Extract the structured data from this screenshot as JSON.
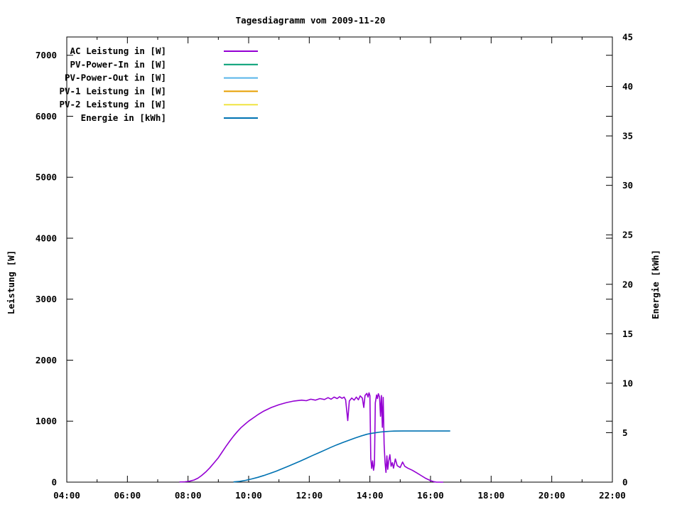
{
  "chart_data": {
    "type": "line",
    "title": "Tagesdiagramm vom 2009-11-20",
    "background": "#ffffff",
    "axis_color": "#000000",
    "grid": false,
    "legend_position": "top-left-inside",
    "x_axis": {
      "min_hour": 4,
      "max_hour": 22,
      "tick_hours": [
        4,
        6,
        8,
        10,
        12,
        14,
        16,
        18,
        20,
        22
      ],
      "tick_labels": [
        "04:00",
        "06:00",
        "08:00",
        "10:00",
        "12:00",
        "14:00",
        "16:00",
        "18:00",
        "20:00",
        "22:00"
      ],
      "minor_tick_hours": [
        5,
        7,
        9,
        11,
        13,
        15,
        17,
        19,
        21
      ]
    },
    "y_left": {
      "label": "Leistung [W]",
      "min": 0,
      "max": 7300,
      "tick_values": [
        0,
        1000,
        2000,
        3000,
        4000,
        5000,
        6000,
        7000
      ],
      "tick_labels": [
        "0",
        "1000",
        "2000",
        "3000",
        "4000",
        "5000",
        "6000",
        "7000"
      ]
    },
    "y_right": {
      "label": "Energie [kWh]",
      "min": 0,
      "max": 45,
      "tick_values": [
        0,
        5,
        10,
        15,
        20,
        25,
        30,
        35,
        40,
        45
      ],
      "tick_labels": [
        "0",
        "5",
        "10",
        "15",
        "20",
        "25",
        "30",
        "35",
        "40",
        "45"
      ]
    },
    "legend": [
      {
        "label": "AC Leistung in [W]",
        "color": "#9400d3"
      },
      {
        "label": "PV-Power-In in [W]",
        "color": "#009e73"
      },
      {
        "label": "PV-Power-Out in [W]",
        "color": "#56b4e9"
      },
      {
        "label": "PV-1 Leistung in [W]",
        "color": "#e69f00"
      },
      {
        "label": "PV-2 Leistung in [W]",
        "color": "#f0e442"
      },
      {
        "label": "Energie in [kWh]",
        "color": "#0072b2"
      }
    ],
    "series": [
      {
        "name": "AC Leistung in [W]",
        "axis": "left",
        "color": "#9400d3",
        "points": [
          [
            7.72,
            2
          ],
          [
            7.9,
            6
          ],
          [
            8.05,
            15
          ],
          [
            8.2,
            35
          ],
          [
            8.33,
            65
          ],
          [
            8.45,
            110
          ],
          [
            8.58,
            165
          ],
          [
            8.72,
            235
          ],
          [
            8.85,
            310
          ],
          [
            9.0,
            400
          ],
          [
            9.12,
            490
          ],
          [
            9.25,
            585
          ],
          [
            9.38,
            675
          ],
          [
            9.5,
            755
          ],
          [
            9.63,
            830
          ],
          [
            9.75,
            895
          ],
          [
            9.88,
            950
          ],
          [
            10.0,
            1000
          ],
          [
            10.17,
            1060
          ],
          [
            10.33,
            1115
          ],
          [
            10.5,
            1165
          ],
          [
            10.75,
            1225
          ],
          [
            11.0,
            1270
          ],
          [
            11.25,
            1305
          ],
          [
            11.5,
            1330
          ],
          [
            11.75,
            1345
          ],
          [
            11.9,
            1335
          ],
          [
            12.05,
            1360
          ],
          [
            12.2,
            1345
          ],
          [
            12.35,
            1370
          ],
          [
            12.5,
            1355
          ],
          [
            12.62,
            1385
          ],
          [
            12.72,
            1360
          ],
          [
            12.82,
            1395
          ],
          [
            12.92,
            1370
          ],
          [
            13.0,
            1400
          ],
          [
            13.08,
            1375
          ],
          [
            13.15,
            1395
          ],
          [
            13.2,
            1350
          ],
          [
            13.27,
            1010
          ],
          [
            13.32,
            1330
          ],
          [
            13.4,
            1380
          ],
          [
            13.48,
            1345
          ],
          [
            13.55,
            1395
          ],
          [
            13.62,
            1350
          ],
          [
            13.68,
            1415
          ],
          [
            13.75,
            1380
          ],
          [
            13.8,
            1225
          ],
          [
            13.84,
            1420
          ],
          [
            13.9,
            1455
          ],
          [
            13.94,
            1395
          ],
          [
            13.97,
            1465
          ],
          [
            14.0,
            1420
          ],
          [
            14.03,
            390
          ],
          [
            14.06,
            225
          ],
          [
            14.09,
            350
          ],
          [
            14.12,
            195
          ],
          [
            14.15,
            290
          ],
          [
            14.18,
            1300
          ],
          [
            14.22,
            1430
          ],
          [
            14.25,
            1370
          ],
          [
            14.28,
            1450
          ],
          [
            14.32,
            1395
          ],
          [
            14.35,
            1080
          ],
          [
            14.38,
            1420
          ],
          [
            14.41,
            900
          ],
          [
            14.44,
            1390
          ],
          [
            14.47,
            620
          ],
          [
            14.5,
            320
          ],
          [
            14.53,
            160
          ],
          [
            14.56,
            430
          ],
          [
            14.59,
            210
          ],
          [
            14.62,
            340
          ],
          [
            14.66,
            450
          ],
          [
            14.7,
            260
          ],
          [
            14.74,
            320
          ],
          [
            14.78,
            230
          ],
          [
            14.84,
            380
          ],
          [
            14.9,
            270
          ],
          [
            15.0,
            240
          ],
          [
            15.08,
            330
          ],
          [
            15.15,
            260
          ],
          [
            15.25,
            230
          ],
          [
            15.4,
            195
          ],
          [
            15.55,
            150
          ],
          [
            15.7,
            105
          ],
          [
            15.85,
            60
          ],
          [
            16.0,
            25
          ],
          [
            16.1,
            8
          ],
          [
            16.2,
            0
          ],
          [
            16.42,
            0
          ]
        ]
      },
      {
        "name": "Energie in [kWh]",
        "axis": "right",
        "color": "#0072b2",
        "points": [
          [
            9.5,
            0.02
          ],
          [
            9.7,
            0.08
          ],
          [
            9.9,
            0.18
          ],
          [
            10.1,
            0.32
          ],
          [
            10.3,
            0.48
          ],
          [
            10.5,
            0.67
          ],
          [
            10.7,
            0.88
          ],
          [
            10.9,
            1.1
          ],
          [
            11.1,
            1.35
          ],
          [
            11.3,
            1.6
          ],
          [
            11.5,
            1.86
          ],
          [
            11.7,
            2.12
          ],
          [
            11.9,
            2.4
          ],
          [
            12.1,
            2.68
          ],
          [
            12.3,
            2.95
          ],
          [
            12.5,
            3.22
          ],
          [
            12.7,
            3.5
          ],
          [
            12.9,
            3.76
          ],
          [
            13.1,
            4.0
          ],
          [
            13.3,
            4.22
          ],
          [
            13.5,
            4.45
          ],
          [
            13.7,
            4.66
          ],
          [
            13.9,
            4.84
          ],
          [
            14.05,
            4.93
          ],
          [
            14.2,
            5.0
          ],
          [
            14.35,
            5.07
          ],
          [
            14.5,
            5.11
          ],
          [
            14.65,
            5.14
          ],
          [
            14.8,
            5.16
          ],
          [
            15.1,
            5.17
          ],
          [
            15.5,
            5.17
          ],
          [
            16.0,
            5.17
          ],
          [
            16.65,
            5.17
          ]
        ]
      }
    ]
  }
}
